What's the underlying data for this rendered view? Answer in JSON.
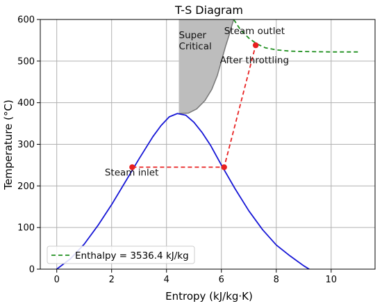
{
  "chart_data": {
    "type": "line",
    "title": "T-S Diagram",
    "xlabel": "Entropy (kJ/kg·K)",
    "ylabel": "Temperature (°C)",
    "xlim": [
      -0.6,
      11.6
    ],
    "ylim": [
      0,
      600
    ],
    "xticks": [
      0,
      2,
      4,
      6,
      8,
      10
    ],
    "yticks": [
      0,
      100,
      200,
      300,
      400,
      500,
      600
    ],
    "grid": true,
    "legend_position": "lower-left",
    "series": [
      {
        "name": "",
        "style": "solid",
        "color": "#1515d6",
        "x": [
          0,
          0.5,
          1.0,
          1.5,
          2.0,
          2.5,
          3.0,
          3.5,
          3.8,
          4.1,
          4.4,
          4.7,
          5.0,
          5.3,
          5.6,
          6.0,
          6.5,
          7.0,
          7.5,
          8.0,
          8.5,
          9.0,
          9.2
        ],
        "y": [
          0,
          25,
          60,
          105,
          155,
          210,
          265,
          318,
          345,
          366,
          374,
          370,
          353,
          328,
          298,
          250,
          193,
          140,
          95,
          58,
          32,
          8,
          0
        ]
      },
      {
        "name": "",
        "style": "dashed",
        "color": "#e82020",
        "x": [
          2.75,
          6.1,
          7.25
        ],
        "y": [
          245,
          245,
          538
        ],
        "markers": [
          {
            "x": 2.75,
            "y": 245
          },
          {
            "x": 6.1,
            "y": 245
          },
          {
            "x": 7.25,
            "y": 538
          }
        ]
      },
      {
        "name": "Enthalpy = 3536.4 kJ/kg",
        "style": "dashed",
        "color": "#1f8f1f",
        "x": [
          6.45,
          6.7,
          7.0,
          7.3,
          7.6,
          8.0,
          8.5,
          9.0,
          10.0,
          11.0
        ],
        "y": [
          600,
          575,
          555,
          541,
          532,
          527,
          524,
          523,
          522,
          522
        ]
      }
    ],
    "shaded_region": {
      "label": "Super Critical",
      "color": "#bdbdbd",
      "upper_x": [
        4.45,
        6.05
      ],
      "upper_y": 600,
      "lower_boundary_x": [
        4.45,
        4.8,
        5.1,
        5.4,
        5.65,
        5.85,
        6.0,
        6.15,
        6.28,
        6.37,
        6.45
      ],
      "lower_boundary_y": [
        374,
        375,
        385,
        405,
        432,
        465,
        500,
        535,
        562,
        583,
        600
      ]
    },
    "annotations": [
      {
        "text": "Super",
        "x": 4.45,
        "y": 555
      },
      {
        "text": "Critical",
        "x": 4.45,
        "y": 528
      },
      {
        "text": "Steam outlet",
        "x": 6.1,
        "y": 565
      },
      {
        "text": "After  throttling",
        "x": 5.95,
        "y": 495
      },
      {
        "text": "Steam inlet",
        "x": 1.75,
        "y": 225
      }
    ]
  }
}
